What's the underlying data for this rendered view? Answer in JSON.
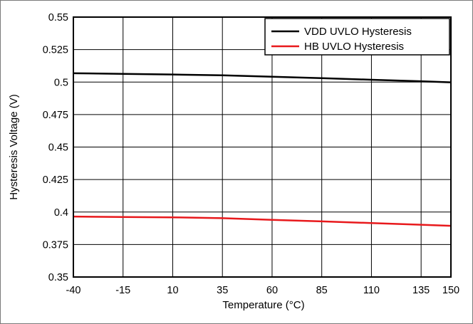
{
  "chart_data": {
    "type": "line",
    "title": "",
    "xlabel": "Temperature (°C)",
    "ylabel": "Hysteresis Voltage (V)",
    "x_ticks": [
      "-40",
      "-15",
      "10",
      "35",
      "60",
      "85",
      "110",
      "135",
      "150"
    ],
    "y_ticks": [
      "0.55",
      "0.525",
      "0.5",
      "0.475",
      "0.45",
      "0.425",
      "0.4",
      "0.375",
      "0.35"
    ],
    "xlim": [
      -40,
      150
    ],
    "ylim": [
      0.35,
      0.55
    ],
    "grid": true,
    "legend_position": "top-right",
    "series": [
      {
        "name": "VDD UVLO Hysteresis",
        "color": "#000000",
        "x": [
          -40,
          -15,
          10,
          35,
          60,
          85,
          110,
          135,
          150
        ],
        "y": [
          0.5068,
          0.5063,
          0.5058,
          0.5052,
          0.5041,
          0.503,
          0.5018,
          0.5006,
          0.4998
        ]
      },
      {
        "name": "HB UVLO Hysteresis",
        "color": "#e8191c",
        "x": [
          -40,
          -15,
          10,
          35,
          60,
          85,
          110,
          135,
          150
        ],
        "y": [
          0.3965,
          0.3962,
          0.3959,
          0.3953,
          0.394,
          0.3928,
          0.3915,
          0.3902,
          0.3894
        ]
      }
    ]
  }
}
